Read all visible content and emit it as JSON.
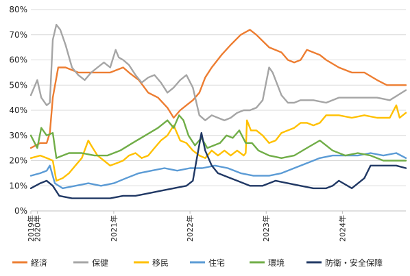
{
  "chart_data": {
    "type": "line",
    "title": "",
    "xlabel": "",
    "ylabel": "",
    "ylim": [
      0,
      80
    ],
    "y_ticks": [
      "0%",
      "10%",
      "20%",
      "30%",
      "40%",
      "50%",
      "60%",
      "70%",
      "80%"
    ],
    "x_range": [
      "2019-12-01",
      "2024-10-31"
    ],
    "x_tick_labels": [
      {
        "label": "2019年",
        "date": "2019-12-01"
      },
      {
        "label": "2020年",
        "date": "2020-01-01"
      },
      {
        "label": "2021年",
        "date": "2021-01-01"
      },
      {
        "label": "2022年",
        "date": "2022-01-01"
      },
      {
        "label": "2023年",
        "date": "2023-01-01"
      },
      {
        "label": "2024年",
        "date": "2024-01-01"
      }
    ],
    "grid": true,
    "legend_position": "bottom",
    "series": [
      {
        "name": "経済",
        "color": "#ed7d31",
        "points": [
          [
            "2019-12-01",
            25
          ],
          [
            "2020-01-15",
            27
          ],
          [
            "2020-02-15",
            27
          ],
          [
            "2020-03-01",
            31
          ],
          [
            "2020-03-15",
            45
          ],
          [
            "2020-04-10",
            57
          ],
          [
            "2020-05-15",
            57
          ],
          [
            "2020-06-15",
            56
          ],
          [
            "2020-07-15",
            55
          ],
          [
            "2020-08-15",
            55
          ],
          [
            "2020-10-15",
            55
          ],
          [
            "2020-12-15",
            55
          ],
          [
            "2021-02-15",
            57
          ],
          [
            "2021-03-15",
            55
          ],
          [
            "2021-05-01",
            52
          ],
          [
            "2021-06-15",
            47
          ],
          [
            "2021-08-01",
            45
          ],
          [
            "2021-09-15",
            41
          ],
          [
            "2021-10-15",
            37
          ],
          [
            "2021-11-15",
            40
          ],
          [
            "2021-12-15",
            42
          ],
          [
            "2022-01-15",
            44
          ],
          [
            "2022-02-15",
            47
          ],
          [
            "2022-03-15",
            53
          ],
          [
            "2022-04-15",
            57
          ],
          [
            "2022-06-01",
            62
          ],
          [
            "2022-07-15",
            66
          ],
          [
            "2022-09-01",
            70
          ],
          [
            "2022-10-15",
            72
          ],
          [
            "2022-11-15",
            70
          ],
          [
            "2023-01-15",
            65
          ],
          [
            "2023-03-15",
            63
          ],
          [
            "2023-04-15",
            60
          ],
          [
            "2023-05-15",
            59
          ],
          [
            "2023-06-15",
            60
          ],
          [
            "2023-07-15",
            64
          ],
          [
            "2023-08-15",
            63
          ],
          [
            "2023-09-15",
            62
          ],
          [
            "2023-10-15",
            60
          ],
          [
            "2023-12-15",
            57
          ],
          [
            "2024-02-15",
            55
          ],
          [
            "2024-04-15",
            55
          ],
          [
            "2024-06-15",
            52
          ],
          [
            "2024-08-01",
            50
          ],
          [
            "2024-10-31",
            50
          ]
        ]
      },
      {
        "name": "保健",
        "color": "#a5a5a5",
        "points": [
          [
            "2019-12-01",
            46
          ],
          [
            "2020-01-01",
            52
          ],
          [
            "2020-01-20",
            45
          ],
          [
            "2020-02-15",
            42
          ],
          [
            "2020-03-01",
            43
          ],
          [
            "2020-03-15",
            68
          ],
          [
            "2020-04-01",
            74
          ],
          [
            "2020-04-20",
            72
          ],
          [
            "2020-05-15",
            66
          ],
          [
            "2020-06-15",
            57
          ],
          [
            "2020-07-15",
            54
          ],
          [
            "2020-08-15",
            52
          ],
          [
            "2020-09-15",
            55
          ],
          [
            "2020-10-15",
            57
          ],
          [
            "2020-11-15",
            59
          ],
          [
            "2020-12-15",
            57
          ],
          [
            "2021-01-10",
            64
          ],
          [
            "2021-01-25",
            61
          ],
          [
            "2021-02-15",
            60
          ],
          [
            "2021-03-15",
            58
          ],
          [
            "2021-04-15",
            54
          ],
          [
            "2021-05-15",
            51
          ],
          [
            "2021-06-15",
            53
          ],
          [
            "2021-07-15",
            54
          ],
          [
            "2021-08-15",
            51
          ],
          [
            "2021-09-15",
            47
          ],
          [
            "2021-10-15",
            49
          ],
          [
            "2021-11-15",
            52
          ],
          [
            "2021-12-15",
            54
          ],
          [
            "2022-01-15",
            49
          ],
          [
            "2022-02-15",
            38
          ],
          [
            "2022-03-15",
            36
          ],
          [
            "2022-04-15",
            38
          ],
          [
            "2022-05-15",
            37
          ],
          [
            "2022-06-15",
            36
          ],
          [
            "2022-07-15",
            37
          ],
          [
            "2022-08-15",
            39
          ],
          [
            "2022-09-15",
            40
          ],
          [
            "2022-10-15",
            40
          ],
          [
            "2022-11-15",
            41
          ],
          [
            "2022-12-15",
            44
          ],
          [
            "2023-01-15",
            57
          ],
          [
            "2023-02-01",
            55
          ],
          [
            "2023-03-15",
            46
          ],
          [
            "2023-04-15",
            43
          ],
          [
            "2023-05-15",
            43
          ],
          [
            "2023-06-15",
            44
          ],
          [
            "2023-08-15",
            44
          ],
          [
            "2023-10-15",
            43
          ],
          [
            "2023-12-15",
            45
          ],
          [
            "2024-02-15",
            45
          ],
          [
            "2024-04-15",
            45
          ],
          [
            "2024-06-15",
            45
          ],
          [
            "2024-08-15",
            44
          ],
          [
            "2024-10-31",
            48
          ]
        ]
      },
      {
        "name": "移民",
        "color": "#ffc000",
        "points": [
          [
            "2019-12-01",
            21
          ],
          [
            "2020-01-15",
            22
          ],
          [
            "2020-02-15",
            21
          ],
          [
            "2020-03-15",
            20
          ],
          [
            "2020-04-01",
            12
          ],
          [
            "2020-05-01",
            13
          ],
          [
            "2020-06-01",
            15
          ],
          [
            "2020-07-01",
            18
          ],
          [
            "2020-08-01",
            21
          ],
          [
            "2020-09-01",
            28
          ],
          [
            "2020-09-15",
            26
          ],
          [
            "2020-10-15",
            22
          ],
          [
            "2020-11-15",
            20
          ],
          [
            "2020-12-15",
            18
          ],
          [
            "2021-01-15",
            19
          ],
          [
            "2021-02-15",
            20
          ],
          [
            "2021-03-15",
            22
          ],
          [
            "2021-04-15",
            23
          ],
          [
            "2021-05-15",
            21
          ],
          [
            "2021-06-15",
            22
          ],
          [
            "2021-07-15",
            25
          ],
          [
            "2021-08-15",
            28
          ],
          [
            "2021-09-15",
            30
          ],
          [
            "2021-10-15",
            34
          ],
          [
            "2021-11-15",
            28
          ],
          [
            "2021-12-15",
            27
          ],
          [
            "2022-01-15",
            24
          ],
          [
            "2022-02-15",
            22
          ],
          [
            "2022-03-15",
            21
          ],
          [
            "2022-04-15",
            24
          ],
          [
            "2022-05-15",
            22
          ],
          [
            "2022-06-15",
            24
          ],
          [
            "2022-07-15",
            22
          ],
          [
            "2022-08-15",
            24
          ],
          [
            "2022-09-15",
            22
          ],
          [
            "2022-09-25",
            23
          ],
          [
            "2022-10-01",
            36
          ],
          [
            "2022-10-20",
            32
          ],
          [
            "2022-11-15",
            32
          ],
          [
            "2022-12-15",
            30
          ],
          [
            "2023-01-15",
            27
          ],
          [
            "2023-02-15",
            28
          ],
          [
            "2023-03-15",
            31
          ],
          [
            "2023-04-15",
            32
          ],
          [
            "2023-05-15",
            33
          ],
          [
            "2023-06-15",
            35
          ],
          [
            "2023-07-15",
            35
          ],
          [
            "2023-08-15",
            34
          ],
          [
            "2023-09-15",
            35
          ],
          [
            "2023-10-15",
            38
          ],
          [
            "2023-12-15",
            38
          ],
          [
            "2024-02-15",
            37
          ],
          [
            "2024-04-15",
            38
          ],
          [
            "2024-06-15",
            37
          ],
          [
            "2024-08-15",
            37
          ],
          [
            "2024-09-15",
            42
          ],
          [
            "2024-10-01",
            37
          ],
          [
            "2024-10-31",
            39
          ]
        ]
      },
      {
        "name": "住宅",
        "color": "#5b9bd5",
        "points": [
          [
            "2019-12-01",
            14
          ],
          [
            "2020-01-15",
            15
          ],
          [
            "2020-02-15",
            16
          ],
          [
            "2020-03-01",
            18
          ],
          [
            "2020-03-25",
            11
          ],
          [
            "2020-05-01",
            9
          ],
          [
            "2020-07-01",
            10
          ],
          [
            "2020-09-01",
            11
          ],
          [
            "2020-11-01",
            10
          ],
          [
            "2021-01-01",
            11
          ],
          [
            "2021-03-01",
            13
          ],
          [
            "2021-05-01",
            15
          ],
          [
            "2021-07-01",
            16
          ],
          [
            "2021-09-01",
            17
          ],
          [
            "2021-11-01",
            16
          ],
          [
            "2022-01-01",
            17
          ],
          [
            "2022-03-01",
            17
          ],
          [
            "2022-05-01",
            18
          ],
          [
            "2022-07-01",
            17
          ],
          [
            "2022-09-01",
            15
          ],
          [
            "2022-11-01",
            14
          ],
          [
            "2023-01-15",
            14
          ],
          [
            "2023-03-15",
            15
          ],
          [
            "2023-05-15",
            17
          ],
          [
            "2023-07-15",
            19
          ],
          [
            "2023-09-15",
            21
          ],
          [
            "2023-11-15",
            22
          ],
          [
            "2024-01-15",
            22
          ],
          [
            "2024-03-15",
            22
          ],
          [
            "2024-05-15",
            23
          ],
          [
            "2024-07-15",
            22
          ],
          [
            "2024-09-15",
            23
          ],
          [
            "2024-10-31",
            21
          ]
        ]
      },
      {
        "name": "環境",
        "color": "#70ad47",
        "points": [
          [
            "2019-12-01",
            30
          ],
          [
            "2020-01-01",
            25
          ],
          [
            "2020-01-20",
            33
          ],
          [
            "2020-02-15",
            30
          ],
          [
            "2020-03-15",
            31
          ],
          [
            "2020-04-01",
            21
          ],
          [
            "2020-06-01",
            23
          ],
          [
            "2020-08-01",
            23
          ],
          [
            "2020-10-01",
            22
          ],
          [
            "2020-12-01",
            22
          ],
          [
            "2021-02-01",
            24
          ],
          [
            "2021-04-01",
            27
          ],
          [
            "2021-06-01",
            30
          ],
          [
            "2021-08-01",
            33
          ],
          [
            "2021-09-15",
            36
          ],
          [
            "2021-10-15",
            33
          ],
          [
            "2021-11-10",
            38
          ],
          [
            "2021-12-01",
            36
          ],
          [
            "2021-12-25",
            30
          ],
          [
            "2022-01-25",
            26
          ],
          [
            "2022-02-25",
            29
          ],
          [
            "2022-03-25",
            25
          ],
          [
            "2022-04-25",
            26
          ],
          [
            "2022-05-25",
            27
          ],
          [
            "2022-06-25",
            30
          ],
          [
            "2022-07-25",
            29
          ],
          [
            "2022-08-25",
            32
          ],
          [
            "2022-09-25",
            27
          ],
          [
            "2022-10-25",
            27
          ],
          [
            "2022-11-25",
            24
          ],
          [
            "2023-01-15",
            22
          ],
          [
            "2023-03-15",
            21
          ],
          [
            "2023-05-15",
            22
          ],
          [
            "2023-07-15",
            25
          ],
          [
            "2023-09-15",
            28
          ],
          [
            "2023-11-15",
            24
          ],
          [
            "2024-01-15",
            22
          ],
          [
            "2024-03-15",
            23
          ],
          [
            "2024-05-15",
            22
          ],
          [
            "2024-07-15",
            20
          ],
          [
            "2024-09-15",
            20
          ],
          [
            "2024-10-31",
            20
          ]
        ]
      },
      {
        "name": "防衛・安全保障",
        "color": "#203864",
        "points": [
          [
            "2019-12-01",
            9
          ],
          [
            "2020-01-15",
            11
          ],
          [
            "2020-02-15",
            12
          ],
          [
            "2020-03-15",
            10
          ],
          [
            "2020-04-15",
            6
          ],
          [
            "2020-06-15",
            5
          ],
          [
            "2020-08-15",
            5
          ],
          [
            "2020-10-15",
            5
          ],
          [
            "2020-12-15",
            5
          ],
          [
            "2021-02-15",
            6
          ],
          [
            "2021-04-15",
            6
          ],
          [
            "2021-06-15",
            7
          ],
          [
            "2021-08-15",
            8
          ],
          [
            "2021-10-15",
            9
          ],
          [
            "2021-12-15",
            10
          ],
          [
            "2022-01-15",
            12
          ],
          [
            "2022-02-01",
            20
          ],
          [
            "2022-02-25",
            31
          ],
          [
            "2022-03-15",
            24
          ],
          [
            "2022-04-15",
            18
          ],
          [
            "2022-05-15",
            15
          ],
          [
            "2022-06-15",
            14
          ],
          [
            "2022-07-15",
            13
          ],
          [
            "2022-08-15",
            12
          ],
          [
            "2022-10-15",
            10
          ],
          [
            "2022-12-15",
            10
          ],
          [
            "2023-02-15",
            12
          ],
          [
            "2023-04-15",
            11
          ],
          [
            "2023-06-15",
            10
          ],
          [
            "2023-08-15",
            9
          ],
          [
            "2023-10-15",
            9
          ],
          [
            "2023-11-15",
            10
          ],
          [
            "2023-12-15",
            12
          ],
          [
            "2024-02-15",
            9
          ],
          [
            "2024-04-15",
            13
          ],
          [
            "2024-05-15",
            18
          ],
          [
            "2024-06-15",
            18
          ],
          [
            "2024-08-15",
            18
          ],
          [
            "2024-09-15",
            18
          ],
          [
            "2024-10-31",
            17
          ]
        ]
      }
    ],
    "legend": [
      "経済",
      "保健",
      "移民",
      "住宅",
      "環境",
      "防衛・安全保障"
    ]
  }
}
